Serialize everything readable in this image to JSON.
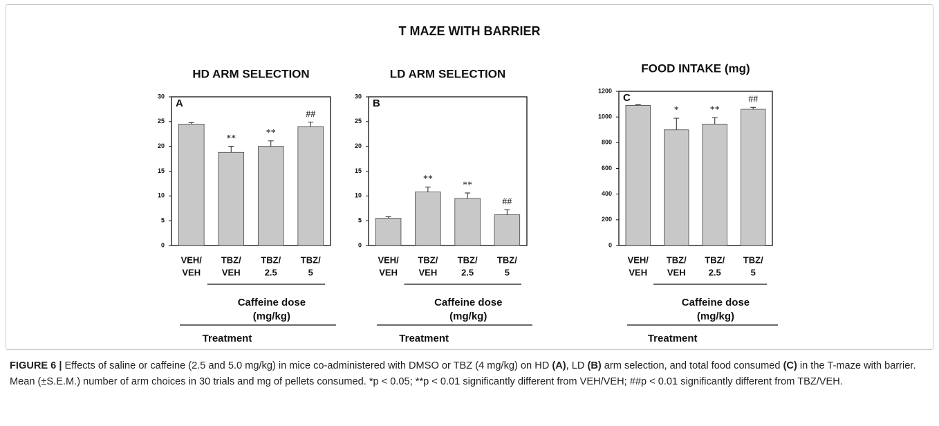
{
  "title": "T MAZE WITH BARRIER",
  "caption": {
    "parts": [
      "FIGURE 6 |",
      " Effects of saline or caffeine (2.5 and 5.0 mg/kg) in mice co-administered with DMSO or TBZ (4 mg/kg) on HD ",
      "(A)",
      ", LD ",
      "(B)",
      " arm selection, and total food consumed ",
      "(C)",
      " in the T-maze with barrier. Mean (±S.E.M.) number of arm choices in 30 trials and mg of pellets consumed. *p < 0.05; **p < 0.01 significantly different from VEH/VEH; ##p < 0.01 significantly different from TBZ/VEH."
    ]
  },
  "chart_data": [
    {
      "type": "bar",
      "title": "HD ARM SELECTION",
      "panel_label": "A",
      "categories": [
        [
          "VEH/",
          "VEH"
        ],
        [
          "TBZ/",
          "VEH"
        ],
        [
          "TBZ/",
          "2.5"
        ],
        [
          "TBZ/",
          "5"
        ]
      ],
      "values": [
        24.5,
        18.8,
        20,
        24
      ],
      "errors": [
        0.3,
        1.2,
        1.1,
        0.9
      ],
      "annotations": [
        null,
        "**",
        "**",
        "##"
      ],
      "color": "#c8c8c8",
      "ylim": [
        0,
        30
      ],
      "yticks": [
        0,
        5,
        10,
        15,
        20,
        25,
        30
      ],
      "group_label": [
        "Caffeine dose",
        "(mg/kg)"
      ],
      "treatment_label": "Treatment"
    },
    {
      "type": "bar",
      "title": "LD ARM SELECTION",
      "panel_label": "B",
      "categories": [
        [
          "VEH/",
          "VEH"
        ],
        [
          "TBZ/",
          "VEH"
        ],
        [
          "TBZ/",
          "2.5"
        ],
        [
          "TBZ/",
          "5"
        ]
      ],
      "values": [
        5.5,
        10.8,
        9.5,
        6.2
      ],
      "errors": [
        0.3,
        1.0,
        1.1,
        1.0
      ],
      "annotations": [
        null,
        "**",
        "**",
        "##"
      ],
      "color": "#c8c8c8",
      "ylim": [
        0,
        30
      ],
      "yticks": [
        0,
        5,
        10,
        15,
        20,
        25,
        30
      ],
      "group_label": [
        "Caffeine dose",
        "(mg/kg)"
      ],
      "treatment_label": "Treatment"
    },
    {
      "type": "bar",
      "title": "FOOD INTAKE (mg)",
      "panel_label": "C",
      "categories": [
        [
          "VEH/",
          "VEH"
        ],
        [
          "TBZ/",
          "VEH"
        ],
        [
          "TBZ/",
          "2.5"
        ],
        [
          "TBZ/",
          "5"
        ]
      ],
      "values": [
        1090,
        900,
        945,
        1060
      ],
      "errors": [
        5,
        90,
        50,
        15
      ],
      "annotations": [
        null,
        "*",
        "**",
        "##"
      ],
      "color": "#c8c8c8",
      "ylim": [
        0,
        1200
      ],
      "yticks": [
        0,
        200,
        400,
        600,
        800,
        1000,
        1200
      ],
      "group_label": [
        "Caffeine dose",
        "(mg/kg)"
      ],
      "treatment_label": "Treatment"
    }
  ]
}
